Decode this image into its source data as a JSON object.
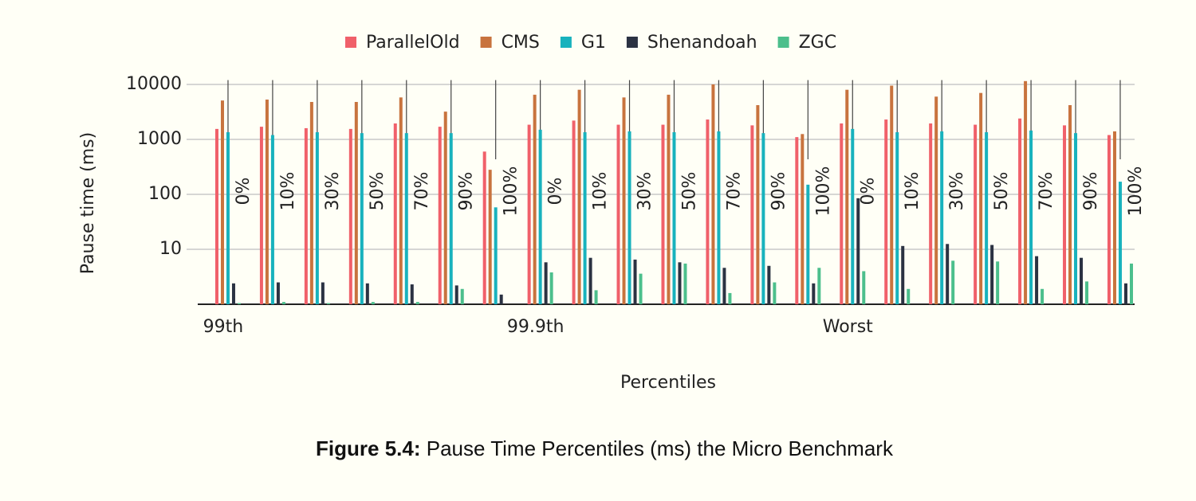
{
  "chart_data": {
    "type": "bar",
    "log_scale": true,
    "x_label": "Percentiles",
    "y_label": "Pause time (ms)",
    "groups": [
      "99th",
      "99.9th",
      "Worst"
    ],
    "categories": [
      "0%",
      "10%",
      "30%",
      "50%",
      "70%",
      "90%",
      "100%",
      "0%",
      "10%",
      "30%",
      "50%",
      "70%",
      "90%",
      "100%",
      "0%",
      "10%",
      "30%",
      "50%",
      "70%",
      "90%",
      "100%"
    ],
    "series": [
      {
        "name": "ParallelOld",
        "color": "#f0606a",
        "values": [
          1550,
          1700,
          1600,
          1550,
          1950,
          1700,
          600,
          1850,
          2200,
          1850,
          1850,
          2300,
          1800,
          1100,
          1950,
          2300,
          1950,
          1850,
          2400,
          1800,
          1200
        ]
      },
      {
        "name": "CMS",
        "color": "#c8733e",
        "values": [
          5100,
          5300,
          4800,
          4800,
          5800,
          3200,
          280,
          6500,
          8000,
          5800,
          6500,
          10000,
          4200,
          1250,
          8000,
          9500,
          6000,
          7000,
          11500,
          4200,
          1400
        ]
      },
      {
        "name": "G1",
        "color": "#18b2bd",
        "values": [
          1350,
          1200,
          1350,
          1300,
          1300,
          1300,
          58,
          1500,
          1350,
          1400,
          1350,
          1400,
          1300,
          150,
          1550,
          1350,
          1400,
          1350,
          1450,
          1300,
          170
        ]
      },
      {
        "name": "Shenandoah",
        "color": "#2b3242",
        "values": [
          2.4,
          2.5,
          2.5,
          2.4,
          2.3,
          2.2,
          1.5,
          5.8,
          7,
          6.5,
          5.8,
          4.6,
          5,
          2.4,
          85,
          11.5,
          12.5,
          12,
          7.5,
          7,
          2.4
        ]
      },
      {
        "name": "ZGC",
        "color": "#4cbf8c",
        "values": [
          1.05,
          1.1,
          1.05,
          1.1,
          1.1,
          1.9,
          1,
          3.8,
          1.8,
          3.6,
          5.5,
          1.6,
          2.5,
          4.6,
          4,
          1.9,
          6.2,
          6,
          1.9,
          2.6,
          5.5
        ]
      }
    ],
    "ylim": [
      1,
      12000
    ],
    "yticks": [
      10,
      100,
      1000,
      10000
    ],
    "grid": true
  },
  "caption": {
    "label": "Figure 5.4:",
    "text": "Pause Time Percentiles (ms) the Micro Benchmark"
  }
}
